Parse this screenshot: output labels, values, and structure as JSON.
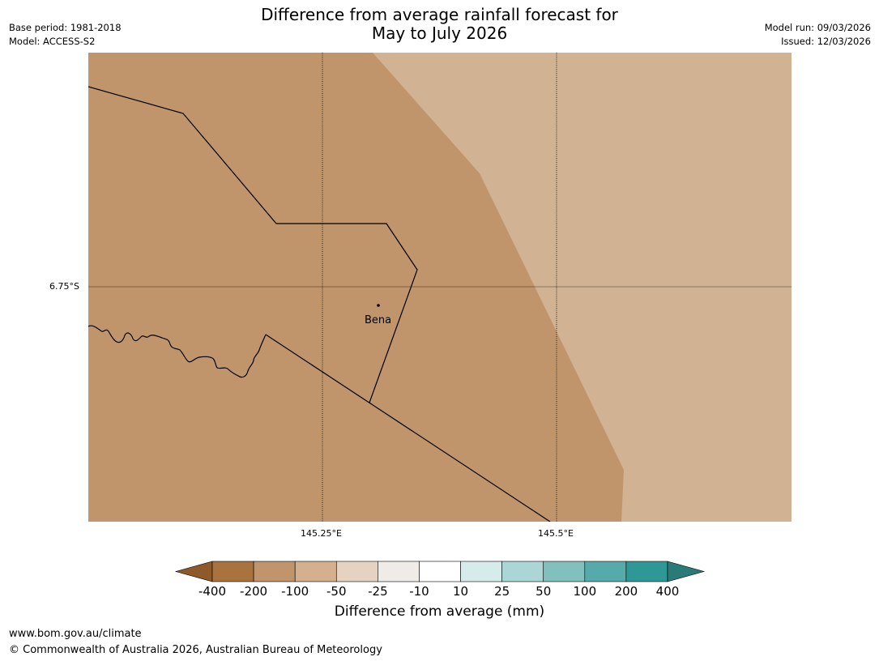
{
  "header": {
    "title_line1": "Difference from average rainfall forecast for",
    "title_line2": "May to July 2026",
    "base_period": "Base period: 1981-2018",
    "model": "Model: ACCESS-S2",
    "model_run": "Model run: 09/03/2026",
    "issued": "Issued: 12/03/2026"
  },
  "map": {
    "lat_label": "6.75°S",
    "lon_labels": [
      "145.25°E",
      "145.5°E"
    ],
    "place": "Bena",
    "colors": {
      "dark_region": "#c0956b",
      "light_region": "#d1b394",
      "boundary": "#000000",
      "gridline": "#000000"
    }
  },
  "colorbar": {
    "title": "Difference from average (mm)",
    "ticks": [
      "-400",
      "-200",
      "-100",
      "-50",
      "-25",
      "-10",
      "10",
      "25",
      "50",
      "100",
      "200",
      "400"
    ],
    "colors": {
      "under": "#8f5a2a",
      "over": "#2a7a78",
      "bins": [
        "#a9733d",
        "#c0956b",
        "#d4b08e",
        "#e6d2c0",
        "#efebe7",
        "#ffffff",
        "#d6ebec",
        "#acd5d5",
        "#82c0bd",
        "#57aaaa",
        "#2e9896"
      ]
    }
  },
  "footer": {
    "url": "www.bom.gov.au/climate",
    "copyright": "© Commonwealth of Australia 2026, Australian Bureau of Meteorology"
  }
}
